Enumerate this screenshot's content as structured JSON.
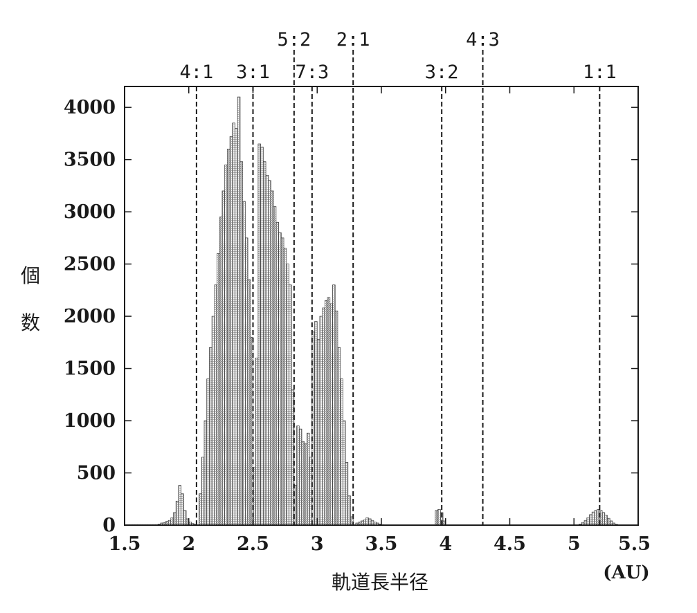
{
  "chart_data": {
    "type": "bar",
    "xlabel": "軌道長半径",
    "xunit": "(AU)",
    "ylabel": "個数",
    "xlim": [
      1.5,
      5.5
    ],
    "ylim": [
      0,
      4200
    ],
    "xticks": [
      "1.5",
      "2",
      "2.5",
      "3",
      "3.5",
      "4",
      "4.5",
      "5",
      "5.5"
    ],
    "xtick_values": [
      1.5,
      2,
      2.5,
      3,
      3.5,
      4,
      4.5,
      5,
      5.5
    ],
    "yticks": [
      "0",
      "500",
      "1000",
      "1500",
      "2000",
      "2500",
      "3000",
      "3500",
      "4000"
    ],
    "ytick_values": [
      0,
      500,
      1000,
      1500,
      2000,
      2500,
      3000,
      3500,
      4000
    ],
    "bin_width": 0.02,
    "bins": [
      {
        "x": 1.5,
        "y": 5
      },
      {
        "x": 1.52,
        "y": 5
      },
      {
        "x": 1.54,
        "y": 5
      },
      {
        "x": 1.56,
        "y": 5
      },
      {
        "x": 1.58,
        "y": 5
      },
      {
        "x": 1.6,
        "y": 5
      },
      {
        "x": 1.62,
        "y": 5
      },
      {
        "x": 1.64,
        "y": 5
      },
      {
        "x": 1.66,
        "y": 5
      },
      {
        "x": 1.68,
        "y": 5
      },
      {
        "x": 1.7,
        "y": 5
      },
      {
        "x": 1.72,
        "y": 5
      },
      {
        "x": 1.74,
        "y": 5
      },
      {
        "x": 1.76,
        "y": 10
      },
      {
        "x": 1.78,
        "y": 20
      },
      {
        "x": 1.8,
        "y": 25
      },
      {
        "x": 1.82,
        "y": 35
      },
      {
        "x": 1.84,
        "y": 45
      },
      {
        "x": 1.86,
        "y": 70
      },
      {
        "x": 1.88,
        "y": 120
      },
      {
        "x": 1.9,
        "y": 230
      },
      {
        "x": 1.92,
        "y": 380
      },
      {
        "x": 1.94,
        "y": 300
      },
      {
        "x": 1.96,
        "y": 140
      },
      {
        "x": 1.98,
        "y": 60
      },
      {
        "x": 2.0,
        "y": 30
      },
      {
        "x": 2.02,
        "y": 15
      },
      {
        "x": 2.04,
        "y": 8
      },
      {
        "x": 2.08,
        "y": 300
      },
      {
        "x": 2.1,
        "y": 650
      },
      {
        "x": 2.12,
        "y": 1000
      },
      {
        "x": 2.14,
        "y": 1400
      },
      {
        "x": 2.16,
        "y": 1700
      },
      {
        "x": 2.18,
        "y": 2000
      },
      {
        "x": 2.2,
        "y": 2300
      },
      {
        "x": 2.22,
        "y": 2600
      },
      {
        "x": 2.24,
        "y": 2950
      },
      {
        "x": 2.26,
        "y": 3200
      },
      {
        "x": 2.28,
        "y": 3450
      },
      {
        "x": 2.3,
        "y": 3600
      },
      {
        "x": 2.32,
        "y": 3720
      },
      {
        "x": 2.34,
        "y": 3850
      },
      {
        "x": 2.36,
        "y": 3800
      },
      {
        "x": 2.38,
        "y": 4100
      },
      {
        "x": 2.4,
        "y": 3480
      },
      {
        "x": 2.42,
        "y": 3100
      },
      {
        "x": 2.44,
        "y": 2750
      },
      {
        "x": 2.46,
        "y": 2350
      },
      {
        "x": 2.48,
        "y": 1800
      },
      {
        "x": 2.5,
        "y": 550
      },
      {
        "x": 2.52,
        "y": 1600
      },
      {
        "x": 2.54,
        "y": 3650
      },
      {
        "x": 2.56,
        "y": 3620
      },
      {
        "x": 2.58,
        "y": 3480
      },
      {
        "x": 2.6,
        "y": 3350
      },
      {
        "x": 2.62,
        "y": 3300
      },
      {
        "x": 2.64,
        "y": 3200
      },
      {
        "x": 2.66,
        "y": 3050
      },
      {
        "x": 2.68,
        "y": 2900
      },
      {
        "x": 2.7,
        "y": 2800
      },
      {
        "x": 2.72,
        "y": 2750
      },
      {
        "x": 2.74,
        "y": 2650
      },
      {
        "x": 2.76,
        "y": 2500
      },
      {
        "x": 2.78,
        "y": 2300
      },
      {
        "x": 2.8,
        "y": 1300
      },
      {
        "x": 2.82,
        "y": 380
      },
      {
        "x": 2.84,
        "y": 950
      },
      {
        "x": 2.86,
        "y": 920
      },
      {
        "x": 2.88,
        "y": 800
      },
      {
        "x": 2.9,
        "y": 780
      },
      {
        "x": 2.92,
        "y": 880
      },
      {
        "x": 2.94,
        "y": 650
      },
      {
        "x": 2.96,
        "y": 1850
      },
      {
        "x": 2.98,
        "y": 1950
      },
      {
        "x": 3.0,
        "y": 1780
      },
      {
        "x": 3.02,
        "y": 2000
      },
      {
        "x": 3.04,
        "y": 2080
      },
      {
        "x": 3.06,
        "y": 2150
      },
      {
        "x": 3.08,
        "y": 2180
      },
      {
        "x": 3.1,
        "y": 2120
      },
      {
        "x": 3.12,
        "y": 2300
      },
      {
        "x": 3.14,
        "y": 2050
      },
      {
        "x": 3.16,
        "y": 1700
      },
      {
        "x": 3.18,
        "y": 1400
      },
      {
        "x": 3.2,
        "y": 1000
      },
      {
        "x": 3.22,
        "y": 600
      },
      {
        "x": 3.24,
        "y": 280
      },
      {
        "x": 3.26,
        "y": 80
      },
      {
        "x": 3.3,
        "y": 20
      },
      {
        "x": 3.32,
        "y": 30
      },
      {
        "x": 3.34,
        "y": 40
      },
      {
        "x": 3.36,
        "y": 50
      },
      {
        "x": 3.38,
        "y": 70
      },
      {
        "x": 3.4,
        "y": 60
      },
      {
        "x": 3.42,
        "y": 45
      },
      {
        "x": 3.44,
        "y": 30
      },
      {
        "x": 3.46,
        "y": 20
      },
      {
        "x": 3.48,
        "y": 10
      },
      {
        "x": 3.5,
        "y": 5
      },
      {
        "x": 3.92,
        "y": 140
      },
      {
        "x": 3.94,
        "y": 150
      },
      {
        "x": 3.96,
        "y": 120
      },
      {
        "x": 3.98,
        "y": 40
      },
      {
        "x": 5.04,
        "y": 10
      },
      {
        "x": 5.06,
        "y": 25
      },
      {
        "x": 5.08,
        "y": 45
      },
      {
        "x": 5.1,
        "y": 70
      },
      {
        "x": 5.12,
        "y": 100
      },
      {
        "x": 5.14,
        "y": 125
      },
      {
        "x": 5.16,
        "y": 140
      },
      {
        "x": 5.18,
        "y": 150
      },
      {
        "x": 5.2,
        "y": 140
      },
      {
        "x": 5.22,
        "y": 120
      },
      {
        "x": 5.24,
        "y": 95
      },
      {
        "x": 5.26,
        "y": 65
      },
      {
        "x": 5.28,
        "y": 40
      },
      {
        "x": 5.3,
        "y": 20
      },
      {
        "x": 5.32,
        "y": 8
      }
    ],
    "resonances": [
      {
        "label": "4:1",
        "a": 2.06,
        "tier": 1,
        "top": "frame"
      },
      {
        "label": "3:1",
        "a": 2.5,
        "tier": 1,
        "top": "frame"
      },
      {
        "label": "5:2",
        "a": 2.82,
        "tier": 2,
        "top": "label"
      },
      {
        "label": "7:3",
        "a": 2.96,
        "tier": 1,
        "top": "frame"
      },
      {
        "label": "2:1",
        "a": 3.28,
        "tier": 2,
        "top": "label"
      },
      {
        "label": "3:2",
        "a": 3.97,
        "tier": 1,
        "top": "frame"
      },
      {
        "label": "4:3",
        "a": 4.29,
        "tier": 2,
        "top": "label"
      },
      {
        "label": "1:1",
        "a": 5.2,
        "tier": 1,
        "top": "frame"
      }
    ]
  }
}
